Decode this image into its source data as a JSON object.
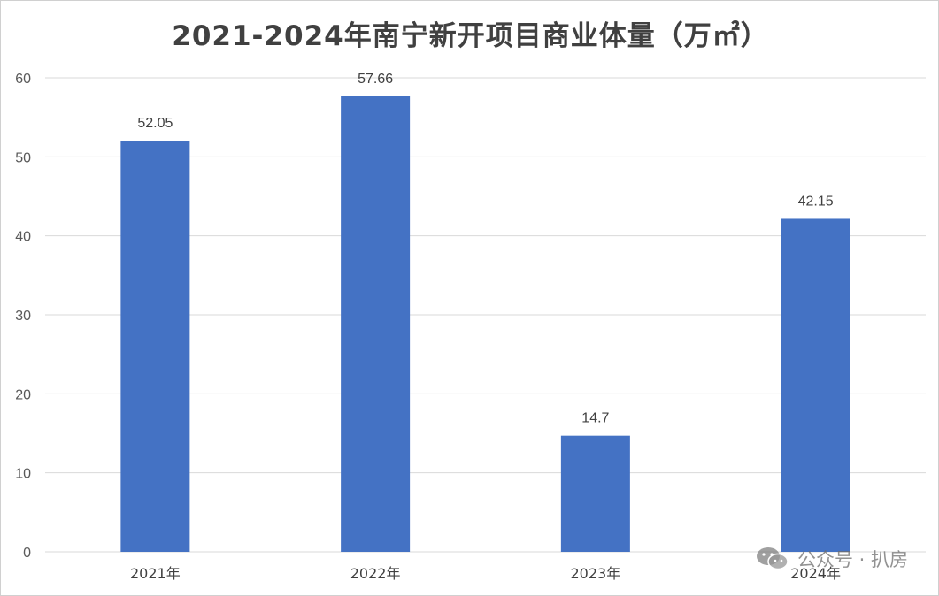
{
  "chart_data": {
    "type": "bar",
    "title": "2021-2024年南宁新开项目商业体量（万㎡）",
    "categories": [
      "2021年",
      "2022年",
      "2023年",
      "2024年"
    ],
    "values": [
      52.05,
      57.66,
      14.7,
      42.15
    ],
    "data_labels": [
      "52.05",
      "57.66",
      "14.7",
      "42.15"
    ],
    "yticks": [
      "0",
      "10",
      "20",
      "30",
      "40",
      "50",
      "60"
    ],
    "ylim": [
      0,
      60
    ],
    "grid": true,
    "bar_color": "#4472C4",
    "grid_color": "#D9D9D9"
  },
  "watermark": {
    "icon": "wechat-icon",
    "text": "公众号 · 扒房"
  }
}
